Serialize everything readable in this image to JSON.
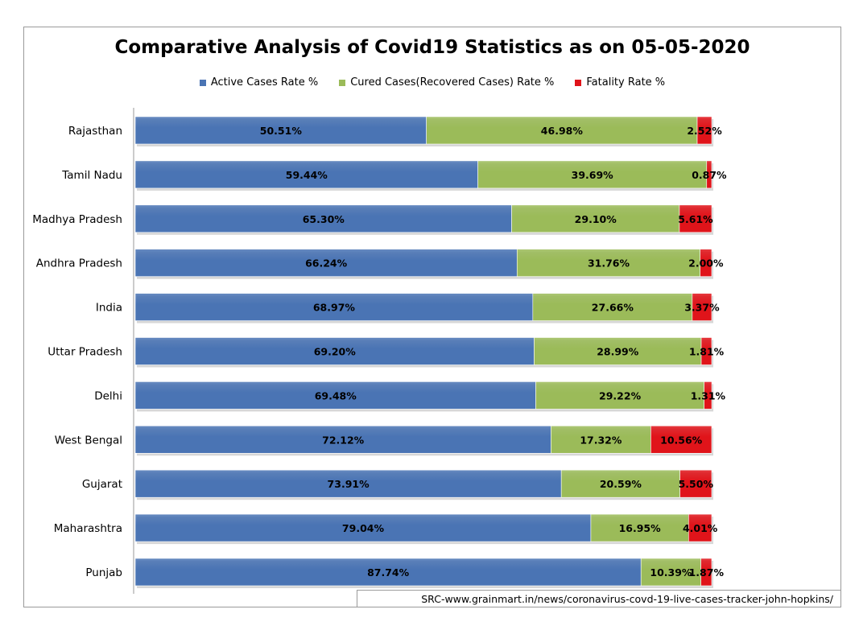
{
  "chart_data": {
    "type": "bar",
    "orientation": "horizontal",
    "stacked": true,
    "percent_stacked": true,
    "title": "Comparative Analysis of Covid19 Statistics as on 05-05-2020",
    "categories": [
      "Rajasthan",
      "Tamil Nadu",
      "Madhya Pradesh",
      "Andhra Pradesh",
      "India",
      "Uttar Pradesh",
      "Delhi",
      "West Bengal",
      "Gujarat",
      "Maharashtra",
      "Punjab"
    ],
    "series": [
      {
        "name": "Active Cases Rate %",
        "color": "#4a74b4",
        "values": [
          50.51,
          59.44,
          65.3,
          66.24,
          68.97,
          69.2,
          69.48,
          72.12,
          73.91,
          79.04,
          87.74
        ],
        "labels": [
          "50.51%",
          "59.44%",
          "65.30%",
          "66.24%",
          "68.97%",
          "69.20%",
          "69.48%",
          "72.12%",
          "73.91%",
          "79.04%",
          "87.74%"
        ]
      },
      {
        "name": "Cured Cases(Recovered Cases) Rate %",
        "color": "#9bbb59",
        "values": [
          46.98,
          39.69,
          29.1,
          31.76,
          27.66,
          28.99,
          29.22,
          17.32,
          20.59,
          16.95,
          10.39
        ],
        "labels": [
          "46.98%",
          "39.69%",
          "29.10%",
          "31.76%",
          "27.66%",
          "28.99%",
          "29.22%",
          "17.32%",
          "20.59%",
          "16.95%",
          "10.39%"
        ]
      },
      {
        "name": "Fatality Rate %",
        "color": "#e0141a",
        "values": [
          2.52,
          0.87,
          5.61,
          2.0,
          3.37,
          1.81,
          1.31,
          10.56,
          5.5,
          4.01,
          1.87
        ],
        "labels": [
          "2.52%",
          "0.87%",
          "5.61%",
          "2.00%",
          "3.37%",
          "1.81%",
          "1.31%",
          "10.56%",
          "5.50%",
          "4.01%",
          "1.87%"
        ]
      }
    ],
    "xlim": [
      0,
      100
    ],
    "legend_position": "top",
    "grid": false
  },
  "source_text": "SRC-www.grainmart.in/news/coronavirus-covd-19-live-cases-tracker-john-hopkins/"
}
